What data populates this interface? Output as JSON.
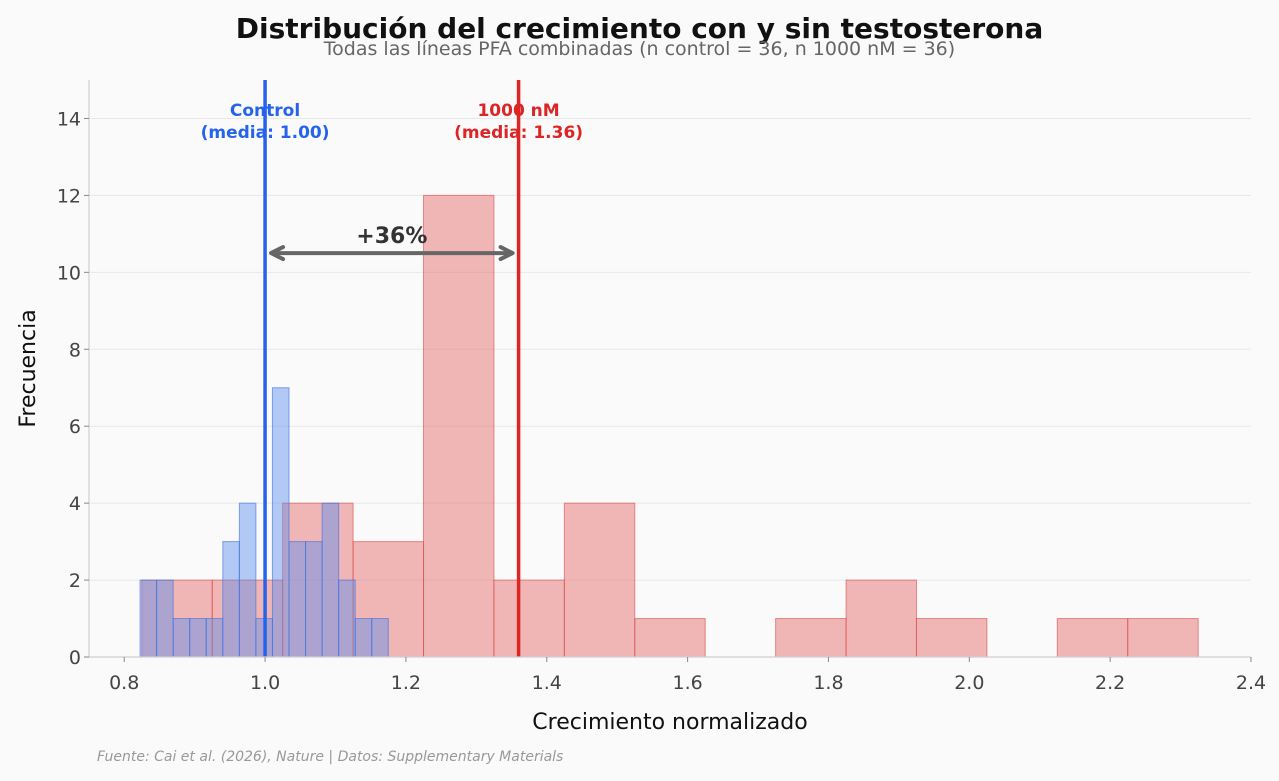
{
  "chart_data": {
    "type": "histogram",
    "title": "Distribución del crecimiento con y sin testosterona",
    "subtitle": "Todas las líneas PFA combinadas (n control = 36, n 1000 nM = 36)",
    "xlabel": "Crecimiento normalizado",
    "ylabel": "Frecuencia",
    "xlim": [
      0.75,
      2.4
    ],
    "ylim": [
      0,
      15
    ],
    "xticks": [
      "0.8",
      "1.0",
      "1.2",
      "1.4",
      "1.6",
      "1.8",
      "2.0",
      "2.2",
      "2.4"
    ],
    "yticks": [
      "0",
      "2",
      "4",
      "6",
      "8",
      "10",
      "12",
      "14"
    ],
    "grid": "horizontal",
    "series": [
      {
        "color": "#e6706f",
        "bins": [
          {
            "x0": 0.825,
            "x1": 0.925,
            "count": 2
          },
          {
            "x0": 0.925,
            "x1": 1.025,
            "count": 2
          },
          {
            "x0": 1.025,
            "x1": 1.125,
            "count": 4
          },
          {
            "x0": 1.125,
            "x1": 1.225,
            "count": 3
          },
          {
            "x0": 1.225,
            "x1": 1.325,
            "count": 12
          },
          {
            "x0": 1.325,
            "x1": 1.425,
            "count": 2
          },
          {
            "x0": 1.425,
            "x1": 1.525,
            "count": 4
          },
          {
            "x0": 1.525,
            "x1": 1.625,
            "count": 1
          },
          {
            "x0": 1.625,
            "x1": 1.725,
            "count": 0
          },
          {
            "x0": 1.725,
            "x1": 1.825,
            "count": 1
          },
          {
            "x0": 1.825,
            "x1": 1.925,
            "count": 2
          },
          {
            "x0": 1.925,
            "x1": 2.025,
            "count": 1
          },
          {
            "x0": 2.025,
            "x1": 2.125,
            "count": 0
          },
          {
            "x0": 2.125,
            "x1": 2.225,
            "count": 1
          },
          {
            "x0": 2.225,
            "x1": 2.325,
            "count": 1
          }
        ]
      },
      {
        "color": "#5b8df0",
        "bins": [
          {
            "x0": 0.8225,
            "x1": 0.846,
            "count": 2
          },
          {
            "x0": 0.846,
            "x1": 0.8695,
            "count": 2
          },
          {
            "x0": 0.8695,
            "x1": 0.893,
            "count": 1
          },
          {
            "x0": 0.893,
            "x1": 0.9165,
            "count": 1
          },
          {
            "x0": 0.9165,
            "x1": 0.94,
            "count": 1
          },
          {
            "x0": 0.94,
            "x1": 0.9635,
            "count": 3
          },
          {
            "x0": 0.9635,
            "x1": 0.987,
            "count": 4
          },
          {
            "x0": 0.987,
            "x1": 1.0105,
            "count": 1
          },
          {
            "x0": 1.0105,
            "x1": 1.034,
            "count": 7
          },
          {
            "x0": 1.034,
            "x1": 1.0575,
            "count": 3
          },
          {
            "x0": 1.0575,
            "x1": 1.081,
            "count": 3
          },
          {
            "x0": 1.081,
            "x1": 1.1045,
            "count": 4
          },
          {
            "x0": 1.1045,
            "x1": 1.128,
            "count": 2
          },
          {
            "x0": 1.128,
            "x1": 1.1515,
            "count": 1
          },
          {
            "x0": 1.1515,
            "x1": 1.175,
            "count": 1
          }
        ]
      }
    ],
    "vlines": [
      {
        "x": 1.0,
        "color": "#2563eb",
        "label1": "Control",
        "label2": "(media: 1.00)"
      },
      {
        "x": 1.36,
        "color": "#dc2626",
        "label1": "1000 nM",
        "label2": "(media: 1.36)"
      }
    ],
    "arrow": {
      "x_from": 1.0,
      "x_to": 1.36,
      "y": 10.5,
      "label": "+36%"
    }
  },
  "source": "Fuente: Cai et al. (2026), Nature | Datos: Supplementary Materials"
}
